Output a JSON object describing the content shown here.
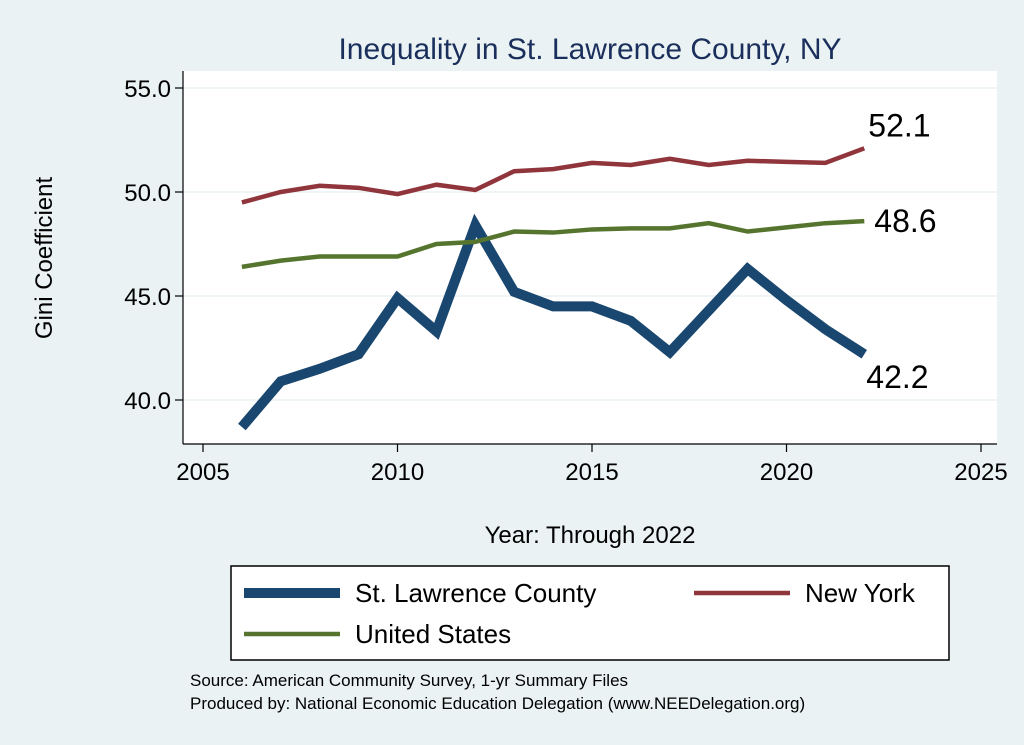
{
  "chart_data": {
    "type": "line",
    "title": "Inequality in St. Lawrence County, NY",
    "title_color": "#1a2f5b",
    "xlabel": "Year: Through 2022",
    "ylabel": "Gini Coefficient",
    "xlim": [
      2005,
      2025
    ],
    "ylim": [
      38,
      56
    ],
    "xticks": [
      2005,
      2010,
      2015,
      2020,
      2025
    ],
    "yticks": [
      40,
      45,
      50,
      55
    ],
    "ytick_labels": [
      "40.0",
      "45.0",
      "50.0",
      "55.0"
    ],
    "grid": true,
    "x": [
      2006,
      2007,
      2008,
      2009,
      2010,
      2011,
      2012,
      2013,
      2014,
      2015,
      2016,
      2017,
      2018,
      2019,
      2020,
      2021,
      2022
    ],
    "series": [
      {
        "name": "St. Lawrence County",
        "color": "#1a476f",
        "weight": "thick",
        "values": [
          38.7,
          40.9,
          41.5,
          42.2,
          44.9,
          43.3,
          48.4,
          45.2,
          44.5,
          44.5,
          43.8,
          42.3,
          44.3,
          46.3,
          44.8,
          43.4,
          42.2
        ],
        "end_label": "42.2"
      },
      {
        "name": "New York",
        "color": "#90353b",
        "weight": "thin",
        "values": [
          49.5,
          50.0,
          50.3,
          50.2,
          49.9,
          50.35,
          50.1,
          51.0,
          51.1,
          51.4,
          51.3,
          51.6,
          51.3,
          51.5,
          51.45,
          51.4,
          52.1
        ],
        "end_label": "52.1"
      },
      {
        "name": "United States",
        "color": "#55752f",
        "weight": "thin",
        "values": [
          46.4,
          46.7,
          46.9,
          46.9,
          46.9,
          47.5,
          47.6,
          48.1,
          48.05,
          48.2,
          48.25,
          48.25,
          48.5,
          48.1,
          48.3,
          48.5,
          48.6
        ],
        "end_label": "48.6"
      }
    ],
    "legend": {
      "position": "bottom",
      "entries": [
        "St. Lawrence County",
        "New York",
        "United States"
      ]
    }
  },
  "source": {
    "line1": "Source: American Community Survey, 1-yr Summary Files",
    "line2": "Produced by: National Economic Education Delegation (www.NEEDelegation.org)"
  }
}
